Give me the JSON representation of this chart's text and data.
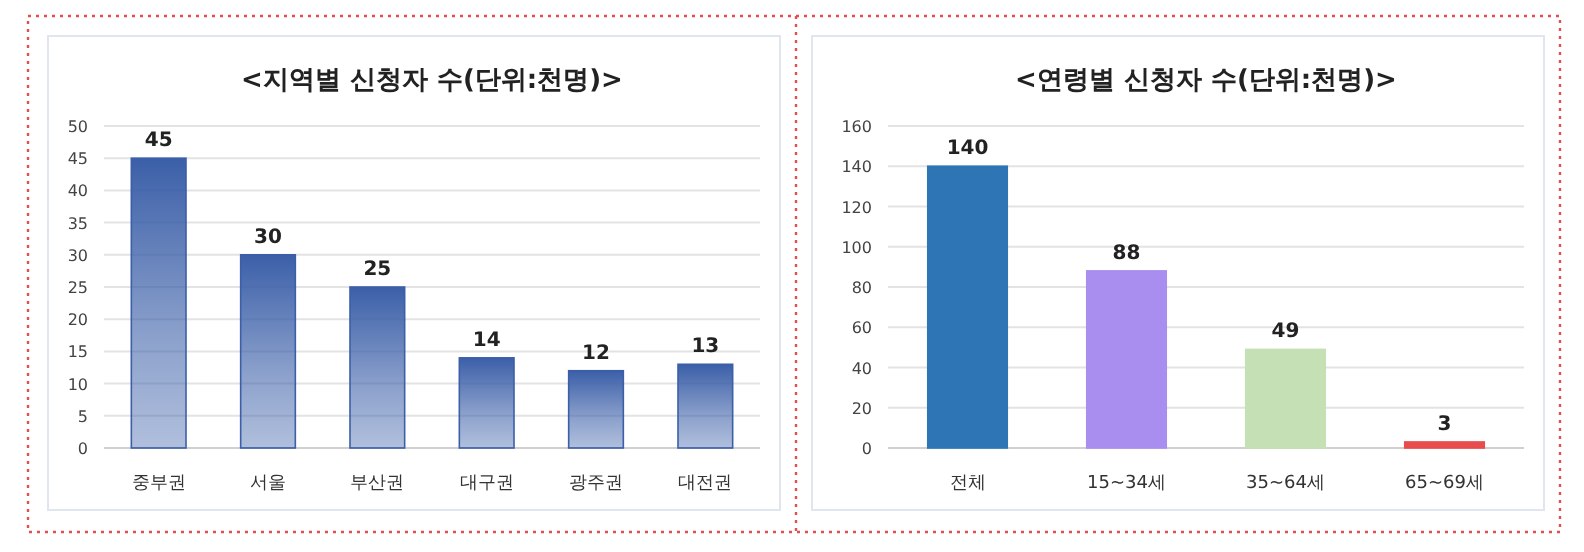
{
  "chart_data": [
    {
      "type": "bar",
      "title": "<지역별 신청자 수(단위:천명)>",
      "categories": [
        "중부권",
        "서울",
        "부산권",
        "대구권",
        "광주권",
        "대전권"
      ],
      "values": [
        45,
        30,
        25,
        14,
        12,
        13
      ],
      "color": "#3b5fa8",
      "ylim": [
        0,
        50
      ],
      "yticks": [
        0,
        5,
        10,
        15,
        20,
        25,
        30,
        35,
        40,
        45,
        50
      ],
      "grid": "y",
      "data_labels": true
    },
    {
      "type": "bar",
      "title": "<연령별 신청자 수(단위:천명)>",
      "categories": [
        "전체",
        "15~34세",
        "35~64세",
        "65~69세"
      ],
      "values": [
        140,
        88,
        49,
        3
      ],
      "colors": [
        "#2e75b6",
        "#a98ef0",
        "#c5e0b4",
        "#e84c4c"
      ],
      "ylim": [
        0,
        160
      ],
      "yticks": [
        0,
        20,
        40,
        60,
        80,
        100,
        120,
        140,
        160
      ],
      "grid": "y",
      "data_labels": true
    }
  ]
}
